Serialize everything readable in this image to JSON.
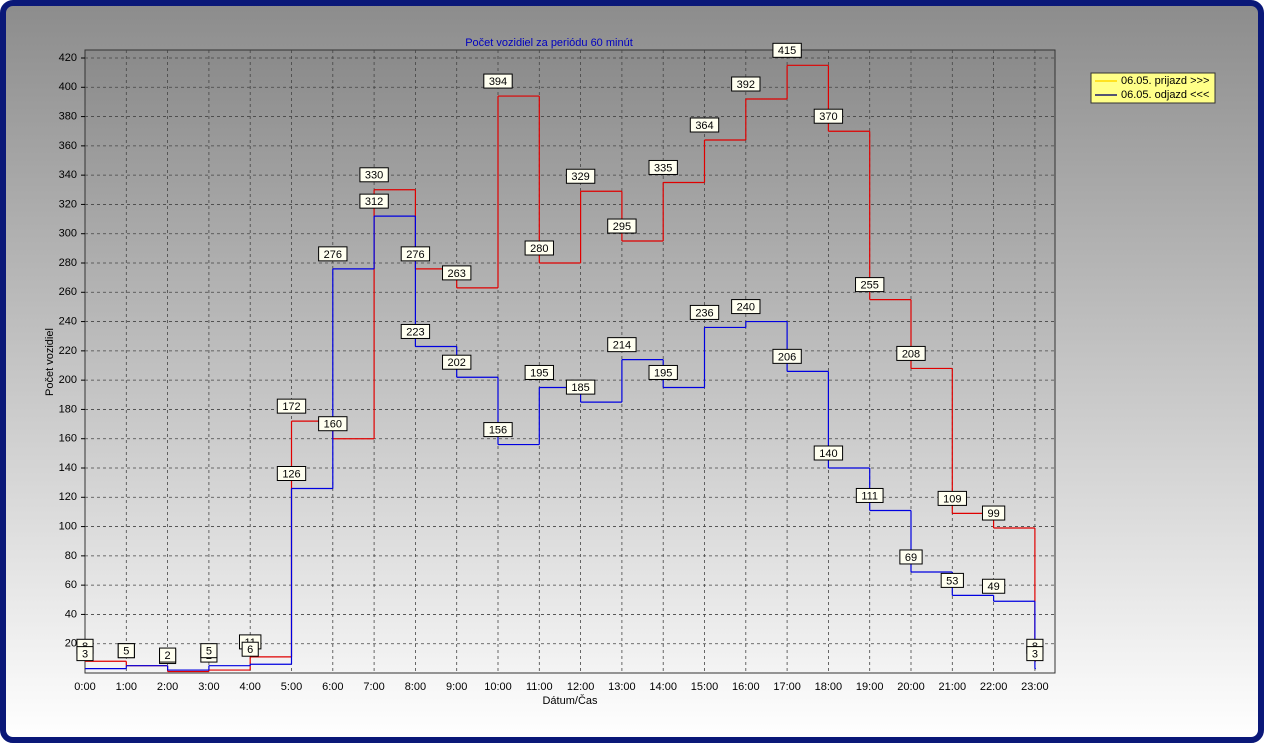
{
  "chart_data": {
    "type": "line",
    "step": true,
    "title": "Počet vozidiel za periódu 60 minút",
    "x_label": "Dátum/Čas",
    "y_label": "Počet vozidiel",
    "categories": [
      "0:00",
      "1:00",
      "2:00",
      "3:00",
      "4:00",
      "5:00",
      "6:00",
      "7:00",
      "8:00",
      "9:00",
      "10:00",
      "11:00",
      "12:00",
      "13:00",
      "14:00",
      "15:00",
      "16:00",
      "17:00",
      "18:00",
      "19:00",
      "20:00",
      "21:00",
      "22:00",
      "23:00"
    ],
    "series": [
      {
        "name": "06.05.  prijazd >>>",
        "color": "#e00000",
        "legend_color": "#ffd800",
        "values": [
          8,
          5,
          1,
          2,
          11,
          172,
          160,
          330,
          276,
          263,
          394,
          280,
          329,
          295,
          335,
          364,
          392,
          415,
          370,
          255,
          208,
          109,
          99,
          8
        ]
      },
      {
        "name": "06.05.  odjazd <<<",
        "color": "#0000e0",
        "legend_color": "#1a1a6a",
        "values": [
          3,
          5,
          2,
          5,
          6,
          126,
          276,
          312,
          223,
          202,
          156,
          195,
          185,
          214,
          195,
          236,
          240,
          206,
          140,
          111,
          69,
          53,
          49,
          3
        ]
      }
    ],
    "ylim": [
      0,
      420
    ],
    "yticks": [
      20,
      40,
      60,
      80,
      100,
      120,
      140,
      160,
      180,
      200,
      220,
      240,
      260,
      280,
      300,
      320,
      340,
      360,
      380,
      400,
      420
    ],
    "grid": true,
    "legend": "top-right"
  }
}
